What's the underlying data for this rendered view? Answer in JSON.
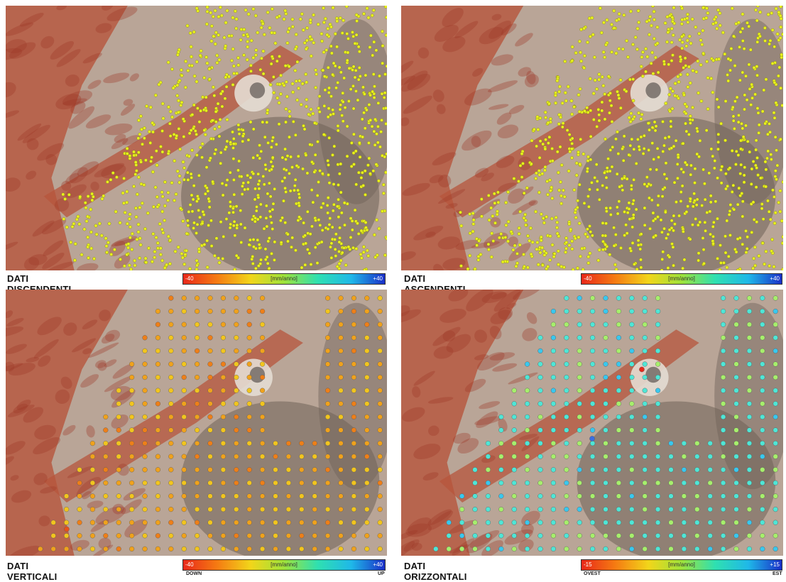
{
  "panels": [
    {
      "id": "tl",
      "caption": "DATI DISCENDENTI",
      "scale_min": "-40",
      "scale_max": "+40",
      "unit": "[mm/anno]",
      "left_end": "",
      "right_end": "",
      "dot_style": "dense",
      "dot_color": "yellow"
    },
    {
      "id": "tr",
      "caption": "DATI ASCENDENTI",
      "scale_min": "-40",
      "scale_max": "+40",
      "unit": "[mm/anno]",
      "left_end": "",
      "right_end": "",
      "dot_style": "dense",
      "dot_color": "yellow"
    },
    {
      "id": "bl",
      "caption": "DATI VERTICALI",
      "scale_min": "-40",
      "scale_max": "+40",
      "unit": "[mm/anno]",
      "left_end": "DOWN",
      "right_end": "UP",
      "dot_style": "grid",
      "dot_color": "orange"
    },
    {
      "id": "br",
      "caption": "DATI ORIZZONTALI",
      "scale_min": "-15",
      "scale_max": "+15",
      "unit": "[mm/anno]",
      "left_end": "OVEST",
      "right_end": "EST",
      "dot_style": "grid",
      "dot_color": "cyan"
    }
  ],
  "colors": {
    "ramp": [
      "#e8281a",
      "#f57a12",
      "#f2d51a",
      "#9ee23a",
      "#2fe0b0",
      "#1fb8e8",
      "#1a2fc8"
    ],
    "terrain_base": "#b9a597",
    "terrain_red": "#b7553c",
    "basin": "#6f6258",
    "dot_yellow": "#e8f01e",
    "dot_orange": "#f0a21c",
    "dot_cyan": "#4fe6d6"
  }
}
